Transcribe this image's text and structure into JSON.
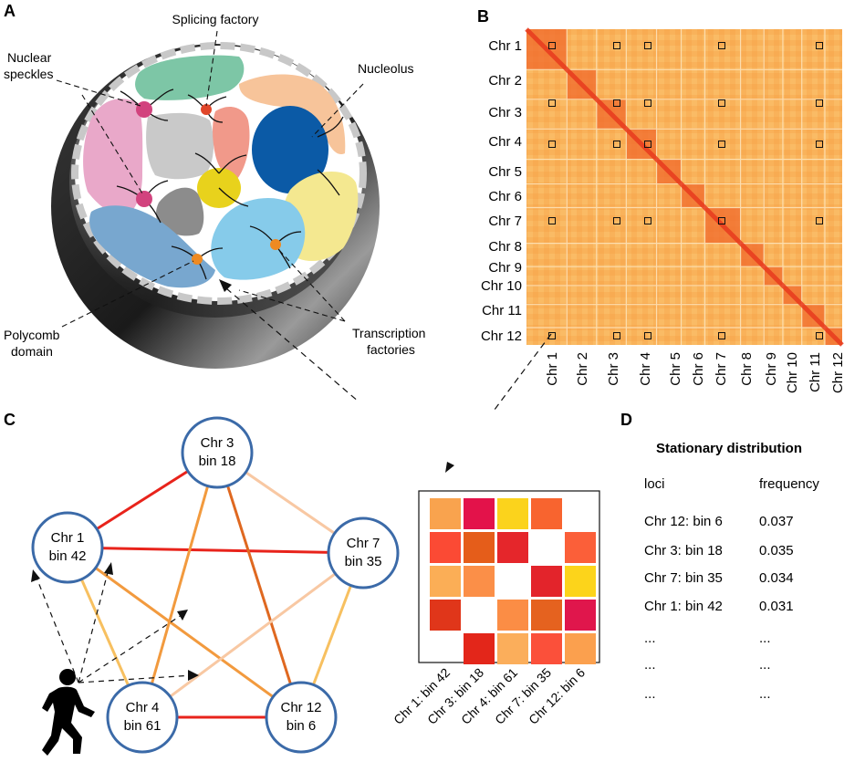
{
  "panels": {
    "a": "A",
    "b": "B",
    "c": "C",
    "d": "D"
  },
  "nucleus_labels": {
    "splicing_factory": "Splicing factory",
    "speckles_line1": "Nuclear",
    "speckles_line2": "speckles",
    "nucleolus": "Nucleolus",
    "polycomb_line1": "Polycomb",
    "polycomb_line2": "domain",
    "transcription_line1": "Transcription",
    "transcription_line2": "factories"
  },
  "heatmap": {
    "row_labels": [
      "Chr 1",
      "Chr 2",
      "Chr 3",
      "Chr 4",
      "Chr 5",
      "Chr 6",
      "Chr 7",
      "Chr 8",
      "Chr 9",
      "Chr 10",
      "Chr 11",
      "Chr 12"
    ],
    "col_labels": [
      "Chr 1",
      "Chr 2",
      "Chr 3",
      "Chr 4",
      "Chr 5",
      "Chr 6",
      "Chr 7",
      "Chr 8",
      "Chr 9",
      "Chr 10",
      "Chr 11",
      "Chr 12"
    ]
  },
  "network": {
    "nodes": [
      {
        "line1": "Chr 3",
        "line2": "bin 18"
      },
      {
        "line1": "Chr 1",
        "line2": "bin 42"
      },
      {
        "line1": "Chr 7",
        "line2": "bin 35"
      },
      {
        "line1": "Chr 4",
        "line2": "bin 61"
      },
      {
        "line1": "Chr 12",
        "line2": "bin 6"
      }
    ],
    "edge_colors": {
      "strong": "#e8231b",
      "medium": "#f29a3e",
      "dark": "#df6820",
      "light": "#f8c8a3",
      "yellow": "#f7c060"
    },
    "node_stroke": "#3b6aa8"
  },
  "mini_matrix": {
    "labels": [
      "Chr 1: bin 42",
      "Chr 3: bin 18",
      "Chr 4: bin 61",
      "Chr 7: bin 35",
      "Chr 12: bin 6"
    ],
    "colors": [
      [
        "#f9a34e",
        "#e3124a",
        "#fbd31c",
        "#f8642f",
        null
      ],
      [
        "#fb4a34",
        "#e55d1a",
        "#e5262b",
        null,
        "#fb5f39"
      ],
      [
        "#fbae56",
        "#fb8f48",
        null,
        "#e3242b",
        "#fcd41b"
      ],
      [
        "#e0361a",
        null,
        "#fb8d45",
        "#e5621f",
        "#e0164c"
      ],
      [
        null,
        "#e3261a",
        "#fbae5b",
        "#fb503a",
        "#fba04e"
      ]
    ]
  },
  "stationary": {
    "title": "Stationary distribution",
    "col_loci": "loci",
    "col_freq": "frequency",
    "rows": [
      {
        "loci": "Chr 12: bin 6",
        "freq": "0.037"
      },
      {
        "loci": "Chr 3: bin 18",
        "freq": "0.035"
      },
      {
        "loci": "Chr 7: bin 35",
        "freq": "0.034"
      },
      {
        "loci": "Chr 1: bin 42",
        "freq": "0.031"
      },
      {
        "loci": "...",
        "freq": "..."
      },
      {
        "loci": "...",
        "freq": "..."
      },
      {
        "loci": "...",
        "freq": "..."
      }
    ]
  }
}
